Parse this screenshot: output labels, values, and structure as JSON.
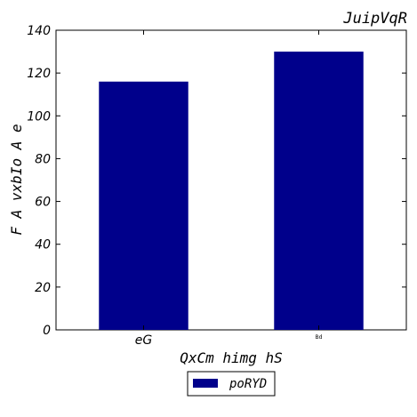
{
  "chart_data": {
    "type": "bar",
    "title": "JuipVqR",
    "xlabel": "QxCm himg hS",
    "ylabel": "F A vxbIo A e",
    "categories": [
      "eG",
      "Bd"
    ],
    "series": [
      {
        "name": "poRYD",
        "values": [
          116,
          130
        ],
        "color": "#00008b"
      }
    ],
    "ylim": [
      0,
      140
    ],
    "yticks": [
      0,
      20,
      40,
      60,
      80,
      100,
      120,
      140
    ],
    "grid": false,
    "legend": "bottom-center"
  }
}
